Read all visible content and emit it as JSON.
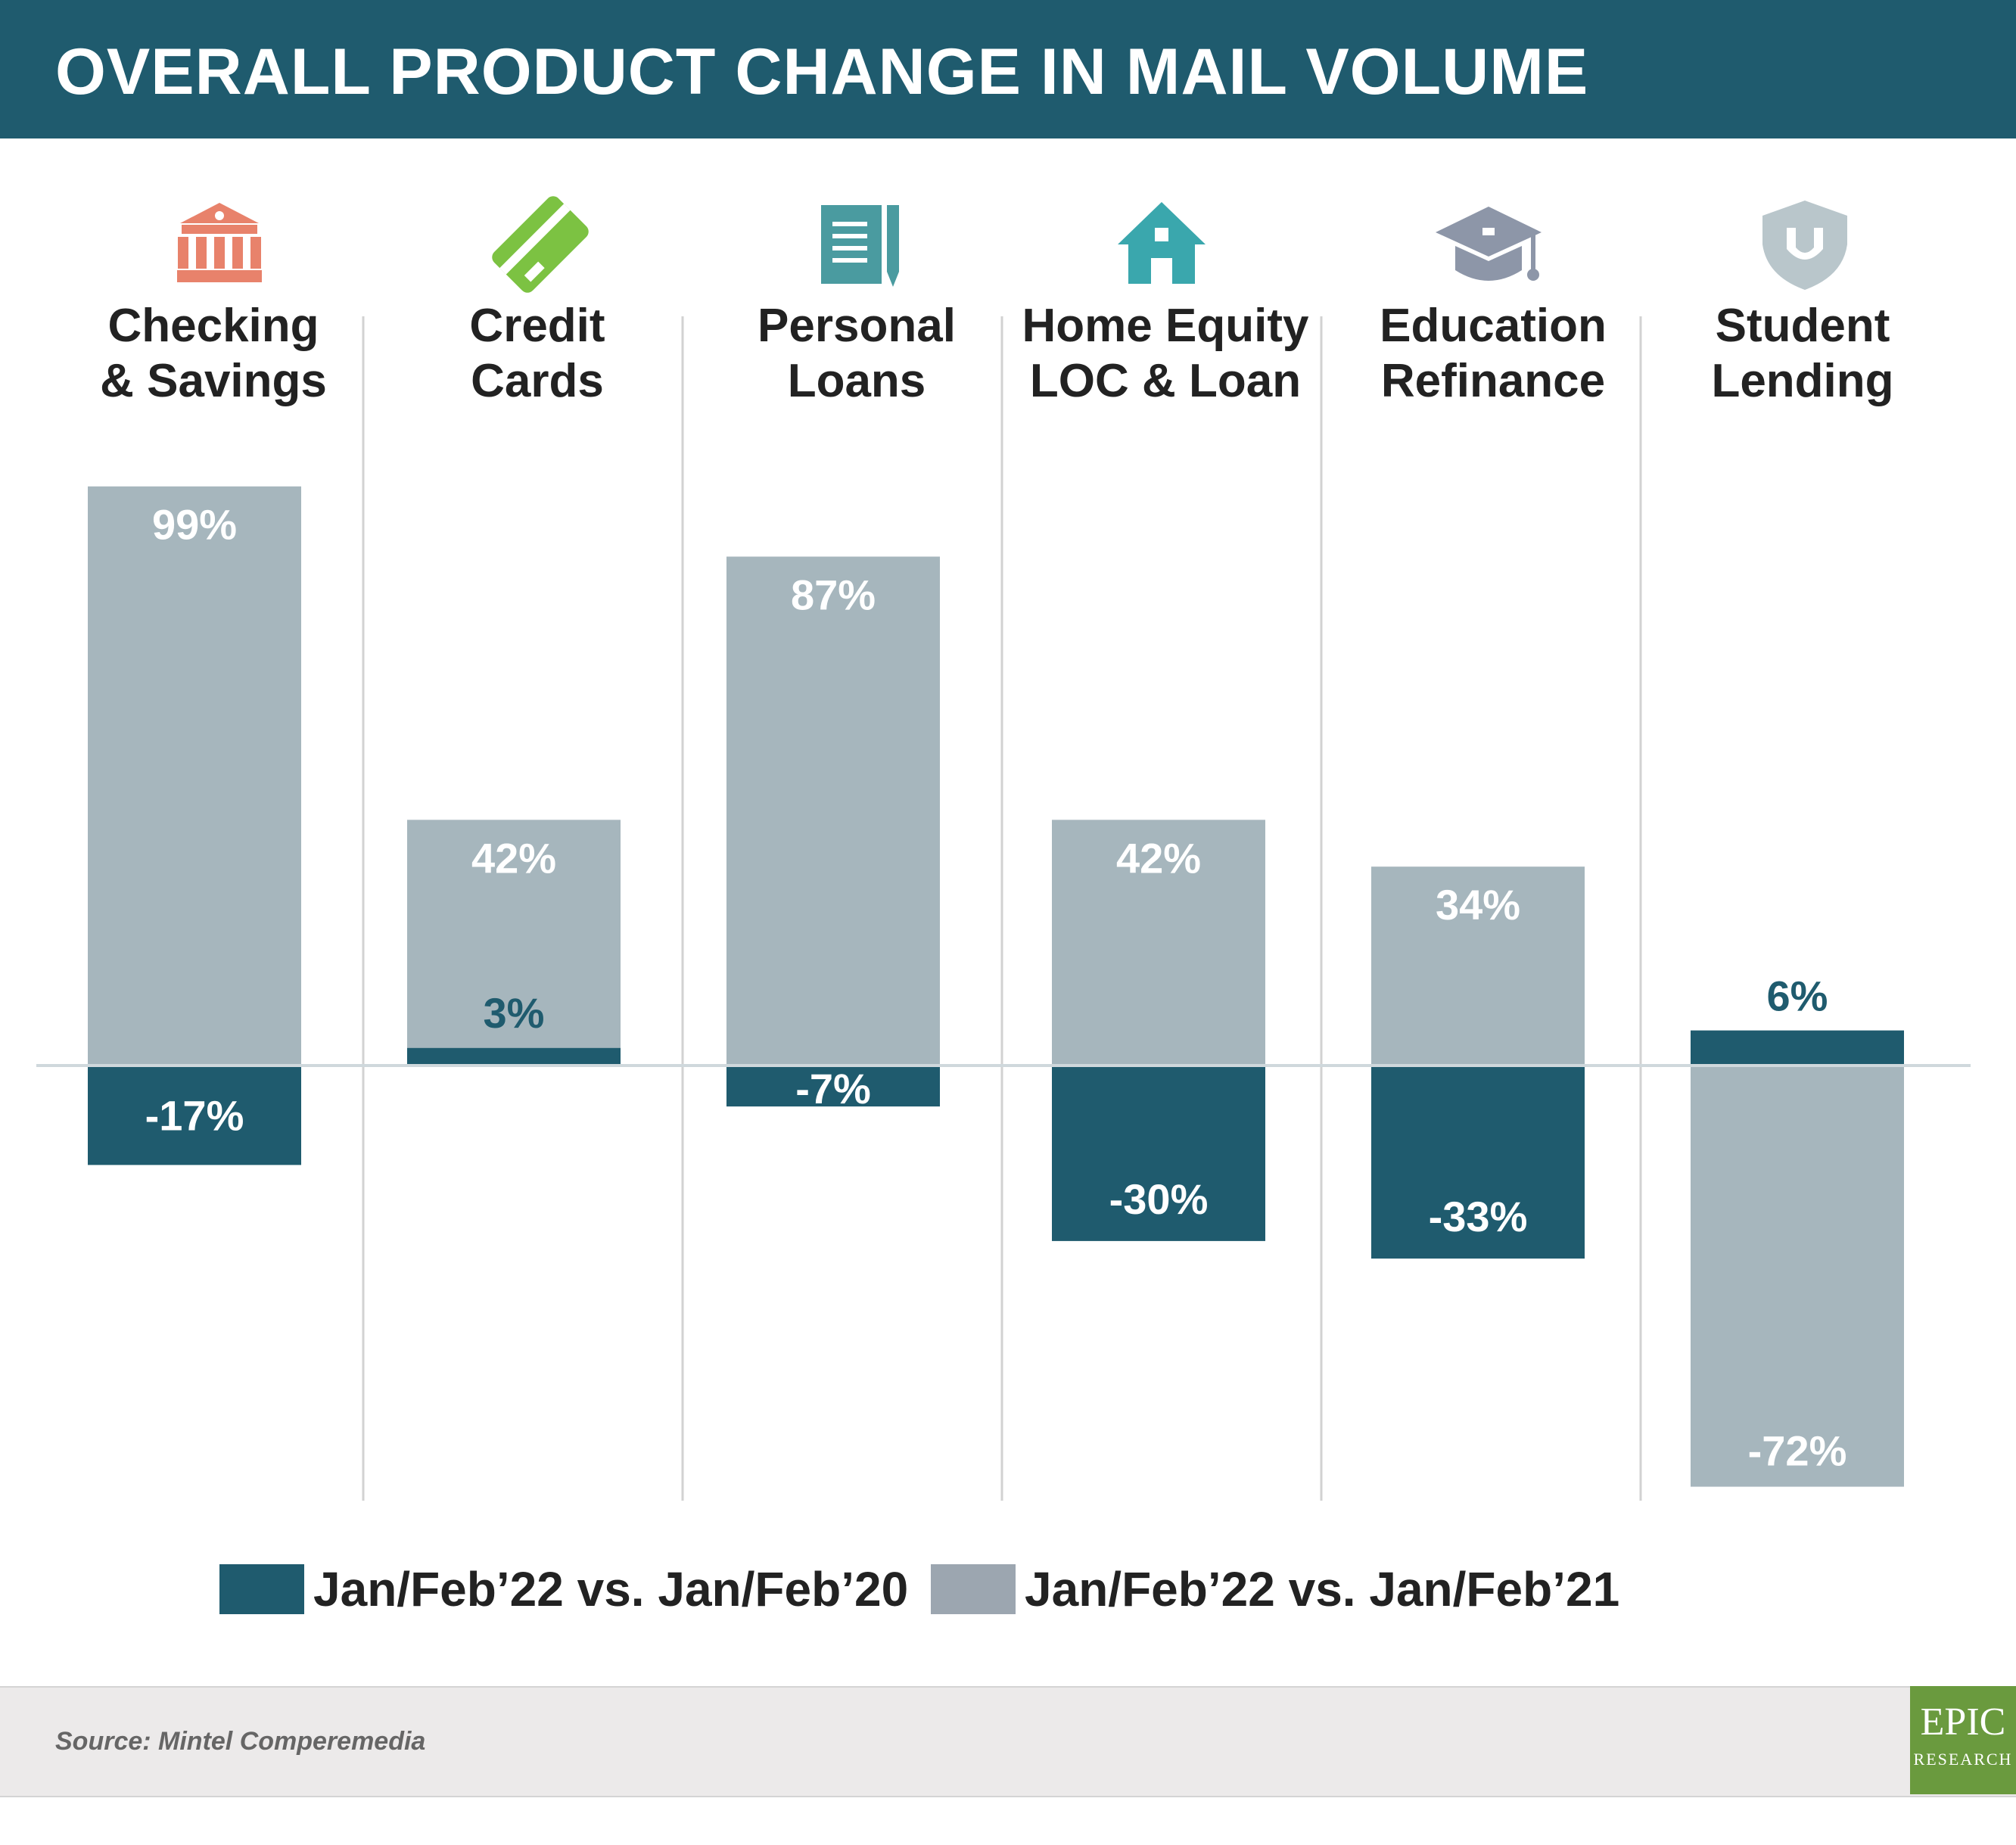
{
  "title": "OVERALL PRODUCT CHANGE IN MAIL VOLUME",
  "source": "Source: Mintel Comperemedia",
  "logo": {
    "line1": "EPIC",
    "line2": "RESEARCH"
  },
  "colors": {
    "header": "#1f5b6e",
    "dark_series": "#1f5b6e",
    "light_series": "#a6b6bd",
    "legend_light": "#9ca6b0"
  },
  "chart_data": {
    "type": "bar",
    "title": "OVERALL PRODUCT CHANGE IN MAIL VOLUME",
    "categories": [
      "Checking & Savings",
      "Credit Cards",
      "Personal Loans",
      "Home Equity LOC & Loan",
      "Education Refinance",
      "Student Lending"
    ],
    "category_lines": [
      [
        "Checking",
        "& Savings"
      ],
      [
        "Credit",
        "Cards"
      ],
      [
        "Personal",
        "Loans"
      ],
      [
        "Home Equity",
        "LOC & Loan"
      ],
      [
        "Education",
        "Refinance"
      ],
      [
        "Student",
        "Lending"
      ]
    ],
    "icons": [
      "bank-icon",
      "credit-card-icon",
      "notepad-pen-icon",
      "house-icon",
      "graduation-cap-icon",
      "shield-u-icon"
    ],
    "icon_colors": [
      "#e8826b",
      "#7cc242",
      "#4a9ba0",
      "#3aa7ad",
      "#8d96a8",
      "#b9c6cb"
    ],
    "series": [
      {
        "name": "Jan/Feb’22 vs. Jan/Feb’20",
        "values": [
          -17,
          3,
          -7,
          -30,
          -33,
          6
        ],
        "labels": [
          "-17%",
          "3%",
          "-7%",
          "-30%",
          "-33%",
          "6%"
        ]
      },
      {
        "name": "Jan/Feb’22 vs. Jan/Feb’21",
        "values": [
          99,
          42,
          87,
          42,
          34,
          -72
        ],
        "labels": [
          "99%",
          "42%",
          "87%",
          "42%",
          "34%",
          "-72%"
        ]
      }
    ],
    "ylim": [
      -72,
      99
    ],
    "grid": false,
    "legend_position": "bottom"
  }
}
